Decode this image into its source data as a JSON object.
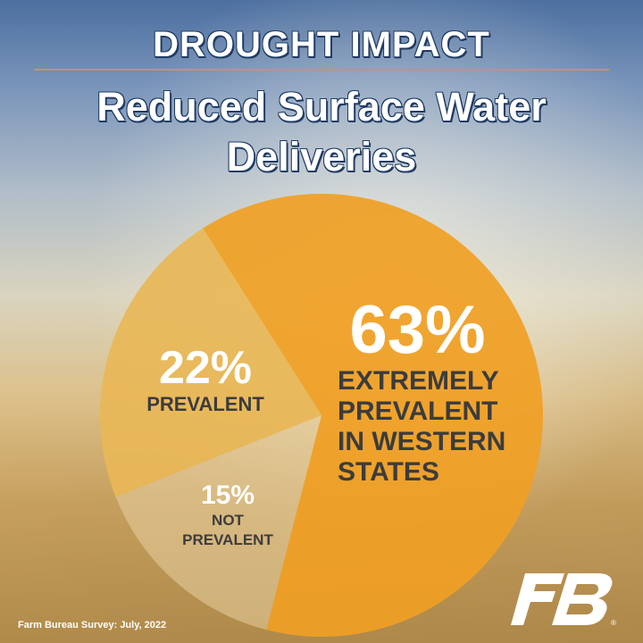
{
  "header": {
    "title": "DROUGHT IMPACT",
    "subtitle": "Reduced Surface Water Deliveries"
  },
  "chart_data": {
    "type": "pie",
    "title": "DROUGHT IMPACT",
    "subtitle": "Reduced Surface Water Deliveries",
    "slices": [
      {
        "label": "EXTREMELY PREVALENT IN WESTERN STATES",
        "value": 63,
        "value_label": "63%",
        "color": "#f0a024"
      },
      {
        "label": "NOT PREVALENT",
        "value": 15,
        "value_label": "15%",
        "color": "#e8cfa0"
      },
      {
        "label": "PREVALENT",
        "value": 22,
        "value_label": "22%",
        "color": "#e8b757"
      }
    ]
  },
  "labels": {
    "big": {
      "pct": "63%",
      "text": "EXTREMELY PREVALENT IN WESTERN STATES"
    },
    "mid": {
      "pct": "22%",
      "text": "PREVALENT"
    },
    "small": {
      "pct": "15%",
      "text": "NOT\nPREVALENT"
    }
  },
  "footer": {
    "source": "Farm Bureau Survey: July, 2022",
    "logo_icon": "farm-bureau-logo-icon"
  }
}
